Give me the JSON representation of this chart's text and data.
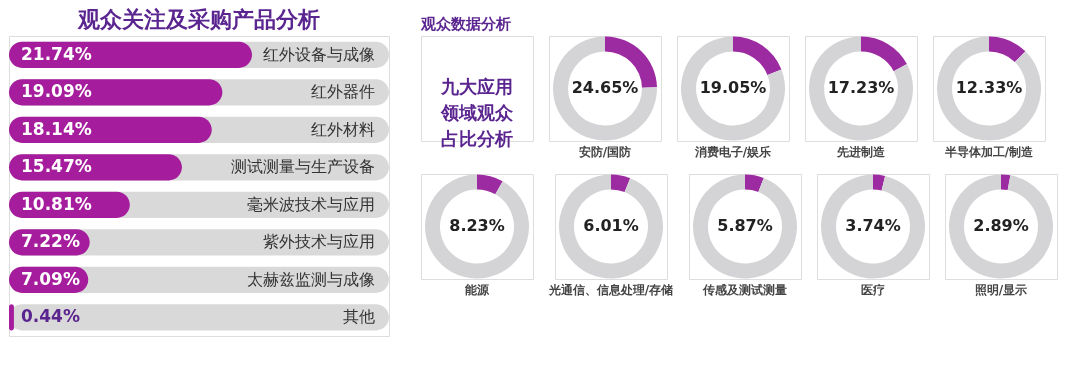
{
  "chart_data": [
    {
      "type": "bar",
      "orientation": "horizontal",
      "title": "观众关注及采购产品分析",
      "categories": [
        "红外设备与成像",
        "红外器件",
        "红外材料",
        "测试测量与生产设备",
        "毫米波技术与应用",
        "紫外技术与应用",
        "太赫兹监测与成像",
        "其他"
      ],
      "values": [
        21.74,
        19.09,
        18.14,
        15.47,
        10.81,
        7.22,
        7.09,
        0.44
      ],
      "value_labels": [
        "21.74%",
        "19.09%",
        "18.14%",
        "15.47%",
        "10.81%",
        "7.22%",
        "7.09%",
        "0.44%"
      ],
      "color": "#a51c9c",
      "xlim": [
        0,
        34
      ],
      "tick_labels": false
    },
    {
      "type": "other",
      "title": "观众数据分析",
      "annotations": [
        "九大应用领域观众占比分析"
      ]
    },
    {
      "type": "donut",
      "title": "安防/国防",
      "categories": [
        null,
        null
      ],
      "values": [
        24.65,
        75.35
      ],
      "colors": [
        "#9c2aa0",
        "#d4d4d6"
      ],
      "value_labels": [
        "24.65%",
        null
      ]
    },
    {
      "type": "donut",
      "title": "消费电子/娱乐",
      "categories": [
        null,
        null
      ],
      "values": [
        19.05,
        80.95
      ],
      "colors": [
        "#9c2aa0",
        "#d4d4d6"
      ],
      "value_labels": [
        "19.05%",
        null
      ]
    },
    {
      "type": "donut",
      "title": "先进制造",
      "categories": [
        null,
        null
      ],
      "values": [
        17.23,
        82.77
      ],
      "colors": [
        "#9c2aa0",
        "#d4d4d6"
      ],
      "value_labels": [
        "17.23%",
        null
      ]
    },
    {
      "type": "donut",
      "title": "半导体加工/制造",
      "categories": [
        null,
        null
      ],
      "values": [
        12.33,
        87.67
      ],
      "colors": [
        "#9c2aa0",
        "#d4d4d6"
      ],
      "value_labels": [
        "12.33%",
        null
      ]
    },
    {
      "type": "donut",
      "title": "能源",
      "categories": [
        null,
        null
      ],
      "values": [
        8.23,
        91.77
      ],
      "colors": [
        "#9c2aa0",
        "#d4d4d6"
      ],
      "value_labels": [
        "8.23%",
        null
      ]
    },
    {
      "type": "donut",
      "title": "光通信、信息处理/存储",
      "categories": [
        null,
        null
      ],
      "values": [
        6.01,
        93.99
      ],
      "colors": [
        "#9c2aa0",
        "#d4d4d6"
      ],
      "value_labels": [
        "6.01%",
        null
      ]
    },
    {
      "type": "donut",
      "title": "传感及测试测量",
      "categories": [
        null,
        null
      ],
      "values": [
        5.87,
        94.13
      ],
      "colors": [
        "#9c2aa0",
        "#d4d4d6"
      ],
      "value_labels": [
        "5.87%",
        null
      ]
    },
    {
      "type": "donut",
      "title": "医疗",
      "categories": [
        null,
        null
      ],
      "values": [
        3.74,
        96.26
      ],
      "colors": [
        "#9c2aa0",
        "#d4d4d6"
      ],
      "value_labels": [
        "3.74%",
        null
      ]
    },
    {
      "type": "donut",
      "title": "照明/显示",
      "categories": [
        null,
        null
      ],
      "values": [
        2.89,
        97.11
      ],
      "colors": [
        "#9c2aa0",
        "#d4d4d6"
      ],
      "value_labels": [
        "2.89%",
        null
      ]
    }
  ]
}
